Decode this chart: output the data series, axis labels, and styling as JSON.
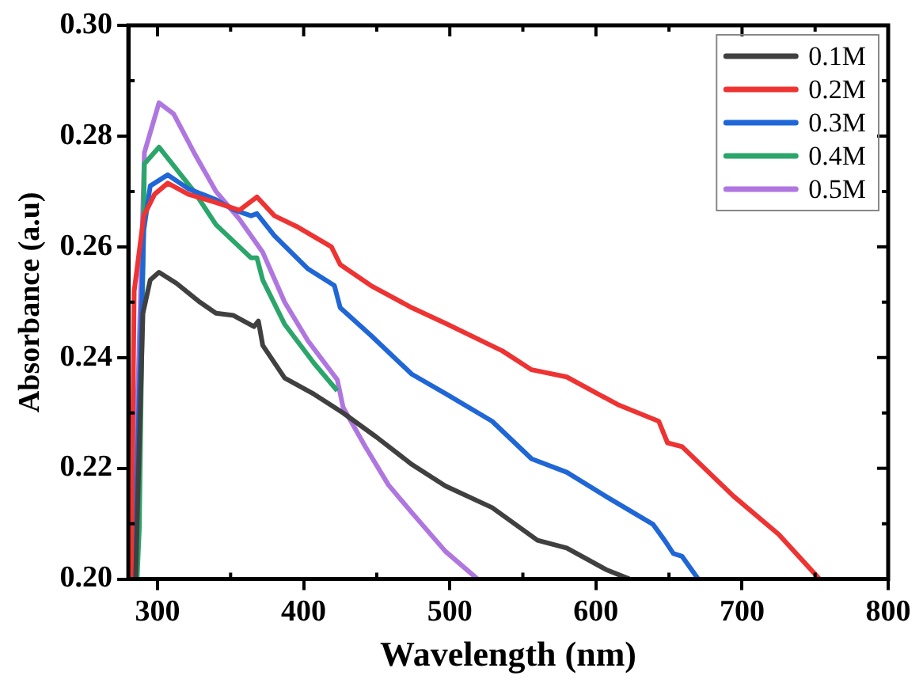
{
  "chart_data": {
    "type": "line",
    "xlabel": "Wavelength (nm)",
    "ylabel": "Absorbance (a.u)",
    "xlim": [
      280,
      800
    ],
    "xticks": [
      300,
      400,
      500,
      600,
      700,
      800
    ],
    "ylim": [
      0.2,
      0.3
    ],
    "yticks": [
      {
        "value": 0.2,
        "label": "0.20"
      },
      0.22,
      0.24,
      0.26,
      0.28,
      {
        "value": 0.3,
        "label": "0.30"
      }
    ],
    "grid": false,
    "legend": "top right",
    "marker": "none",
    "line_style": "solid",
    "series": [
      {
        "name": "0.1M",
        "color": "#404040",
        "x": [
          285,
          290,
          295,
          301,
          313,
          329,
          340,
          352,
          366,
          369,
          372,
          387,
          407,
          427,
          450,
          474,
          497,
          529,
          560,
          580,
          607,
          623
        ],
        "values": [
          0.2,
          0.248,
          0.254,
          0.2554,
          0.2534,
          0.25,
          0.248,
          0.2476,
          0.2456,
          0.2466,
          0.2422,
          0.2363,
          0.2334,
          0.23,
          0.2256,
          0.2207,
          0.2168,
          0.2129,
          0.207,
          0.2056,
          0.2017,
          0.2
        ]
      },
      {
        "name": "0.2M",
        "color": "#ee3333",
        "x": [
          282,
          284,
          290.6,
          298,
          307,
          321,
          340,
          356,
          368,
          380,
          395,
          419,
          425,
          446,
          474,
          497.6,
          536,
          556,
          580,
          615,
          643,
          649,
          659,
          694,
          725,
          753
        ],
        "values": [
          0.2,
          0.252,
          0.2656,
          0.2695,
          0.2715,
          0.2695,
          0.268,
          0.2666,
          0.269,
          0.2656,
          0.2637,
          0.26,
          0.2568,
          0.253,
          0.249,
          0.2461,
          0.2412,
          0.2378,
          0.2365,
          0.2315,
          0.2285,
          0.2246,
          0.2239,
          0.215,
          0.2081,
          0.2
        ]
      },
      {
        "name": "0.3M",
        "color": "#1f66d6",
        "x": [
          284,
          290.6,
          295,
          307,
          321,
          340,
          352,
          364,
          368,
          380,
          403,
          421,
          425,
          446,
          474,
          497.6,
          529,
          556,
          580,
          607,
          639,
          647,
          653,
          659,
          670
        ],
        "values": [
          0.2,
          0.263,
          0.271,
          0.273,
          0.2705,
          0.2685,
          0.2667,
          0.2656,
          0.266,
          0.262,
          0.256,
          0.253,
          0.249,
          0.244,
          0.237,
          0.2334,
          0.2285,
          0.2217,
          0.2193,
          0.2149,
          0.2099,
          0.207,
          0.2046,
          0.2041,
          0.2
        ]
      },
      {
        "name": "0.4M",
        "color": "#2aa66a",
        "x": [
          286,
          287.5,
          291,
          301,
          313,
          325,
          340,
          352,
          364,
          368,
          372,
          387,
          407,
          423
        ],
        "values": [
          0.2,
          0.209,
          0.275,
          0.278,
          0.274,
          0.27,
          0.264,
          0.261,
          0.258,
          0.258,
          0.254,
          0.246,
          0.239,
          0.234
        ]
      },
      {
        "name": "0.5M",
        "color": "#b076e0",
        "x": [
          281.6,
          287,
          291,
          301,
          311,
          325,
          340,
          356,
          372,
          387,
          403,
          423,
          427,
          442,
          458,
          474,
          497,
          519
        ],
        "values": [
          0.2,
          0.238,
          0.277,
          0.286,
          0.284,
          0.277,
          0.27,
          0.265,
          0.259,
          0.25,
          0.243,
          0.236,
          0.231,
          0.224,
          0.217,
          0.212,
          0.205,
          0.2
        ]
      }
    ]
  }
}
